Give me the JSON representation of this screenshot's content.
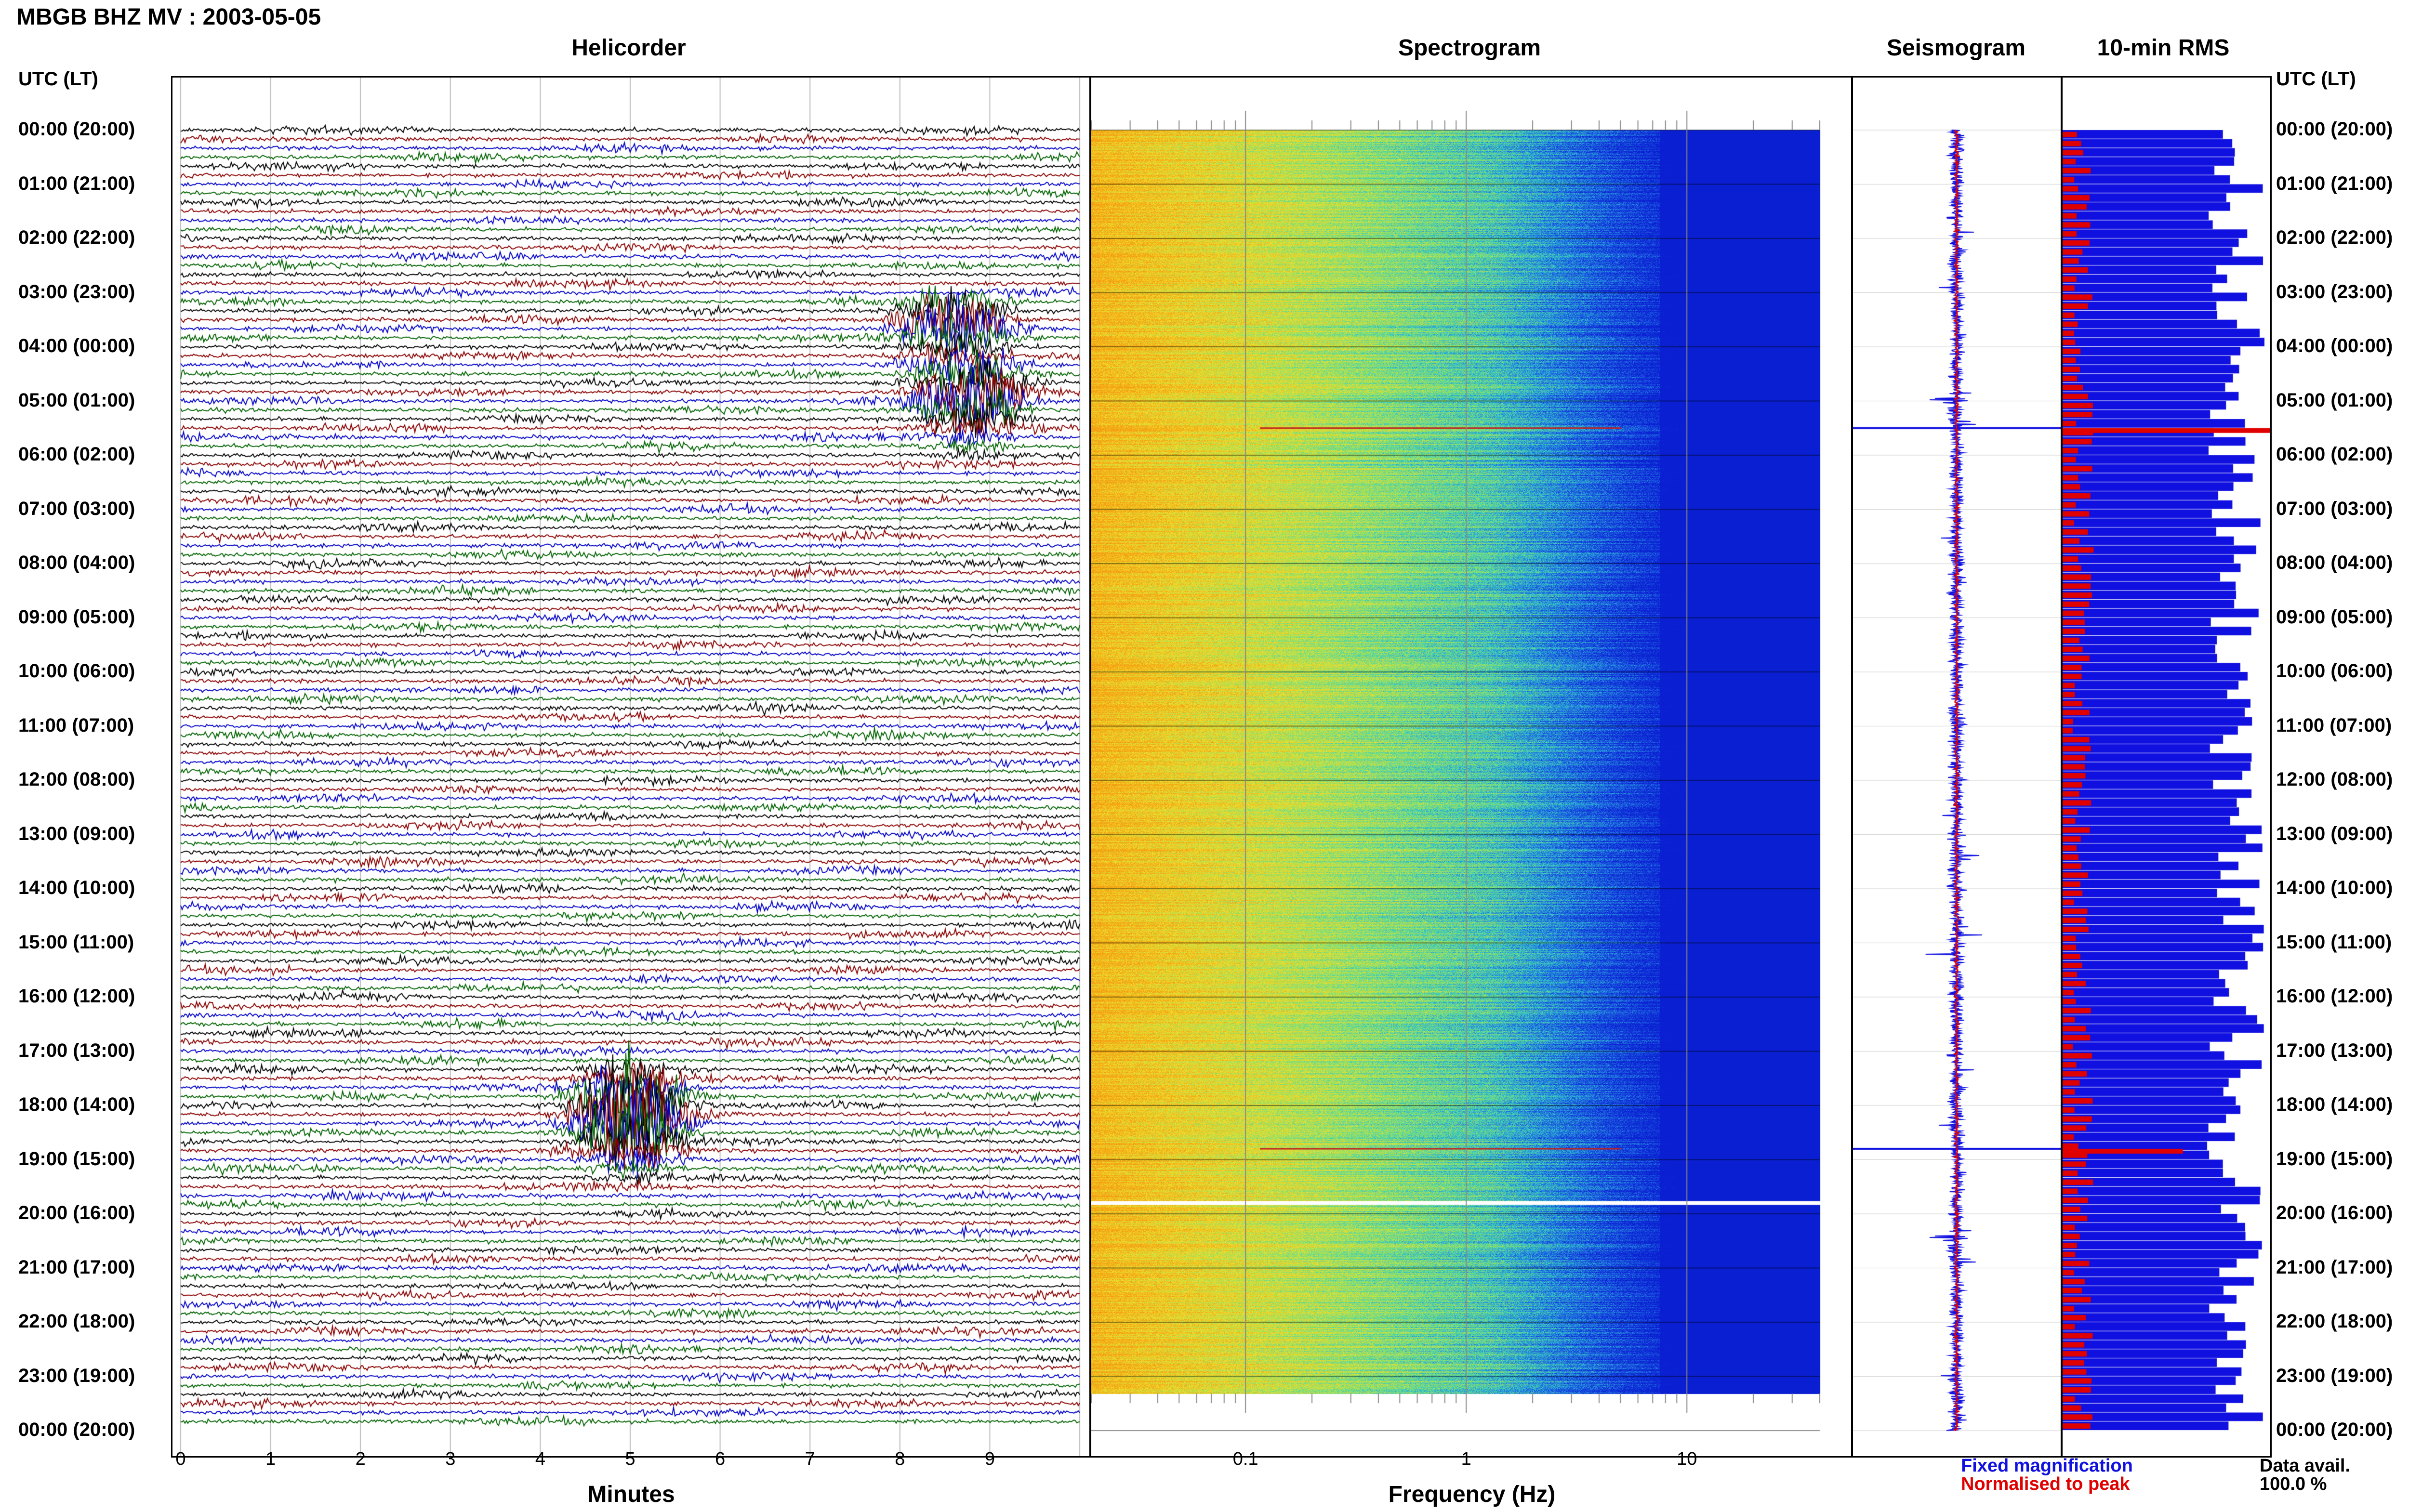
{
  "title": "MBGB BHZ MV : 2003-05-05",
  "utc_header_left": "UTC (LT)",
  "utc_header_right": "UTC (LT)",
  "panels": {
    "helicorder": "Helicorder",
    "spectrogram": "Spectrogram",
    "seismogram": "Seismogram",
    "rms": "10-min RMS"
  },
  "time_labels": [
    "00:00 (20:00)",
    "01:00 (21:00)",
    "02:00 (22:00)",
    "03:00 (23:00)",
    "04:00 (00:00)",
    "05:00 (01:00)",
    "06:00 (02:00)",
    "07:00 (03:00)",
    "08:00 (04:00)",
    "09:00 (05:00)",
    "10:00 (06:00)",
    "11:00 (07:00)",
    "12:00 (08:00)",
    "13:00 (09:00)",
    "14:00 (10:00)",
    "15:00 (11:00)",
    "16:00 (12:00)",
    "17:00 (13:00)",
    "18:00 (14:00)",
    "19:00 (15:00)",
    "20:00 (16:00)",
    "21:00 (17:00)",
    "22:00 (18:00)",
    "23:00 (19:00)",
    "00:00 (20:00)"
  ],
  "legend": {
    "fixed": "Fixed magnification",
    "normalised": "Normalised to peak",
    "fixed_color": "#1010e0",
    "normalised_color": "#e00000"
  },
  "data_avail": {
    "label": "Data avail.",
    "value": "100.0 %"
  },
  "chart_data": [
    {
      "type": "line",
      "name": "helicorder",
      "title": "Helicorder",
      "xlabel": "Minutes",
      "x_ticks": [
        "0",
        "1",
        "2",
        "3",
        "4",
        "5",
        "6",
        "7",
        "8",
        "9"
      ],
      "xlim": [
        0,
        10
      ],
      "rows_per_hour": 6,
      "trace_colors": [
        "#000000",
        "#8b0000",
        "#0000c8",
        "#006400"
      ],
      "events": [
        {
          "hour": 3.6,
          "minute": 8.6,
          "amplitude": "large"
        },
        {
          "hour": 4.9,
          "minute": 8.8,
          "amplitude": "large"
        },
        {
          "hour": 17.9,
          "minute": 5.0,
          "amplitude": "large"
        },
        {
          "hour": 18.3,
          "minute": 5.0,
          "amplitude": "large"
        }
      ]
    },
    {
      "type": "heatmap",
      "name": "spectrogram",
      "title": "Spectrogram",
      "xlabel": "Frequency (Hz)",
      "x_scale": "log",
      "x_ticks": [
        "0.1",
        "1",
        "10"
      ],
      "xlim": [
        0.02,
        40
      ],
      "colormap": [
        "#f39c12",
        "#f7e22a",
        "#9be15a",
        "#2fd2c8",
        "#1f63e8",
        "#0a1fd1"
      ]
    },
    {
      "type": "line",
      "name": "seismogram",
      "title": "Seismogram",
      "series": [
        {
          "name": "Fixed magnification",
          "color": "#1010e0"
        },
        {
          "name": "Normalised to peak",
          "color": "#e00000"
        }
      ]
    },
    {
      "type": "bar",
      "name": "rms",
      "title": "10-min RMS",
      "series": [
        {
          "name": "Fixed magnification",
          "color": "#1010e0"
        },
        {
          "name": "Normalised to peak",
          "color": "#e00000"
        }
      ]
    }
  ]
}
